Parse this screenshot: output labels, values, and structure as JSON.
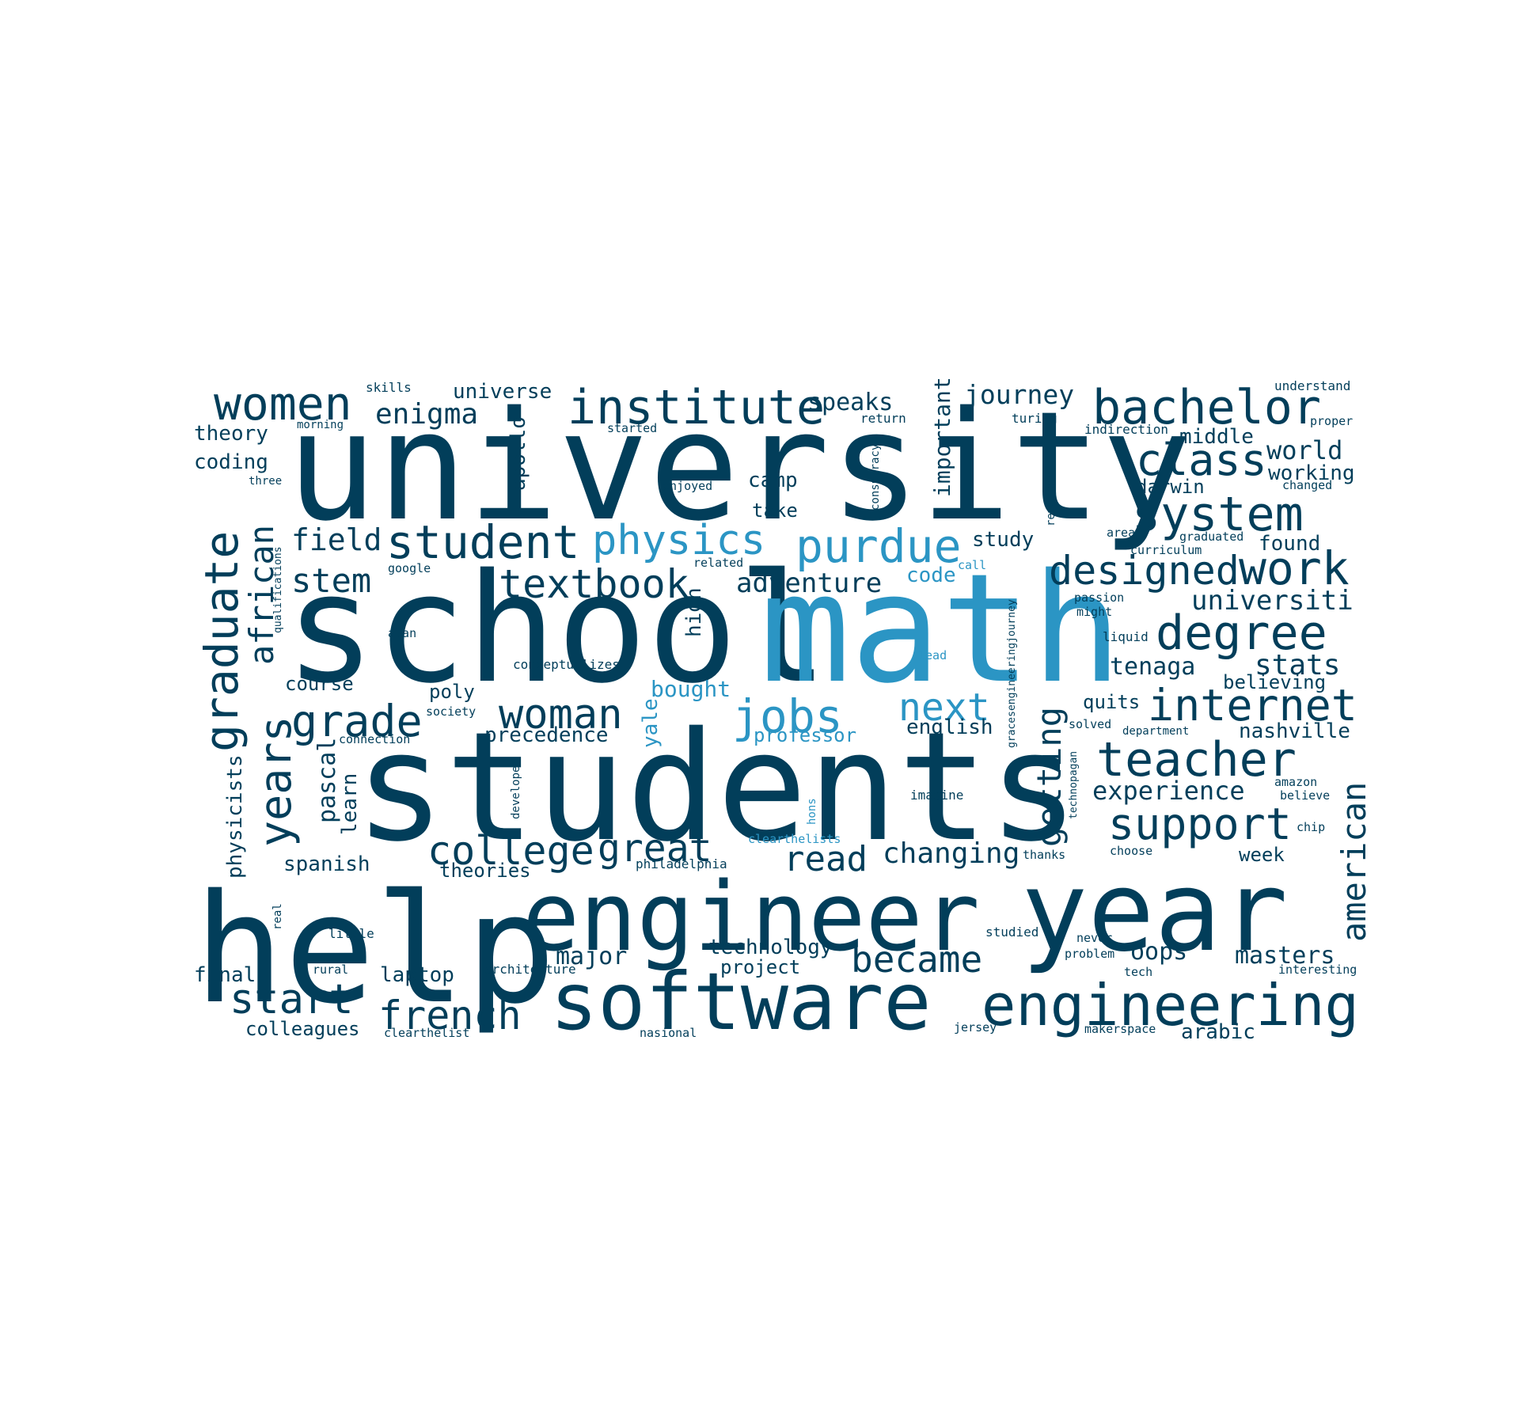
{
  "colors": {
    "dark": "#023e5a",
    "light": "#2b95c4",
    "background": "#ffffff"
  },
  "words": [
    {
      "text": "university",
      "color": "dark"
    },
    {
      "text": "school",
      "color": "dark"
    },
    {
      "text": "math",
      "color": "light"
    },
    {
      "text": "students",
      "color": "dark"
    },
    {
      "text": "help",
      "color": "dark"
    },
    {
      "text": "engineer",
      "color": "dark"
    },
    {
      "text": "year",
      "color": "dark"
    },
    {
      "text": "software",
      "color": "dark"
    },
    {
      "text": "engineering",
      "color": "dark"
    },
    {
      "text": "women",
      "color": "dark"
    },
    {
      "text": "institute",
      "color": "dark"
    },
    {
      "text": "bachelor",
      "color": "dark"
    },
    {
      "text": "class",
      "color": "dark"
    },
    {
      "text": "system",
      "color": "dark"
    },
    {
      "text": "student",
      "color": "dark"
    },
    {
      "text": "physics",
      "color": "light"
    },
    {
      "text": "purdue",
      "color": "light"
    },
    {
      "text": "designed",
      "color": "dark"
    },
    {
      "text": "work",
      "color": "dark"
    },
    {
      "text": "degree",
      "color": "dark"
    },
    {
      "text": "textbook",
      "color": "dark"
    },
    {
      "text": "graduate",
      "color": "dark"
    },
    {
      "text": "african",
      "color": "dark"
    },
    {
      "text": "years",
      "color": "dark"
    },
    {
      "text": "grade",
      "color": "dark"
    },
    {
      "text": "woman",
      "color": "dark"
    },
    {
      "text": "jobs",
      "color": "light"
    },
    {
      "text": "next",
      "color": "light"
    },
    {
      "text": "internet",
      "color": "dark"
    },
    {
      "text": "teacher",
      "color": "dark"
    },
    {
      "text": "getting",
      "color": "dark"
    },
    {
      "text": "american",
      "color": "dark"
    },
    {
      "text": "support",
      "color": "dark"
    },
    {
      "text": "college",
      "color": "dark"
    },
    {
      "text": "great",
      "color": "dark"
    },
    {
      "text": "read",
      "color": "dark"
    },
    {
      "text": "changing",
      "color": "dark"
    },
    {
      "text": "start",
      "color": "dark"
    },
    {
      "text": "french",
      "color": "dark"
    },
    {
      "text": "became",
      "color": "dark"
    },
    {
      "text": "stem",
      "color": "dark"
    },
    {
      "text": "field",
      "color": "dark"
    },
    {
      "text": "enigma",
      "color": "dark"
    },
    {
      "text": "journey",
      "color": "dark"
    },
    {
      "text": "universe",
      "color": "dark"
    },
    {
      "text": "speaks",
      "color": "dark"
    },
    {
      "text": "theory",
      "color": "dark"
    },
    {
      "text": "coding",
      "color": "dark"
    },
    {
      "text": "world",
      "color": "dark"
    },
    {
      "text": "working",
      "color": "dark"
    },
    {
      "text": "middle",
      "color": "dark"
    },
    {
      "text": "darwin",
      "color": "dark"
    },
    {
      "text": "found",
      "color": "dark"
    },
    {
      "text": "universiti",
      "color": "dark"
    },
    {
      "text": "tenaga",
      "color": "dark"
    },
    {
      "text": "stats",
      "color": "dark"
    },
    {
      "text": "believing",
      "color": "dark"
    },
    {
      "text": "quits",
      "color": "dark"
    },
    {
      "text": "nashville",
      "color": "dark"
    },
    {
      "text": "experience",
      "color": "dark"
    },
    {
      "text": "adventure",
      "color": "dark"
    },
    {
      "text": "code",
      "color": "light"
    },
    {
      "text": "camp",
      "color": "dark"
    },
    {
      "text": "take",
      "color": "dark"
    },
    {
      "text": "study",
      "color": "dark"
    },
    {
      "text": "apollo",
      "color": "dark"
    },
    {
      "text": "important",
      "color": "dark"
    },
    {
      "text": "high",
      "color": "dark"
    },
    {
      "text": "course",
      "color": "dark"
    },
    {
      "text": "poly",
      "color": "dark"
    },
    {
      "text": "bought",
      "color": "light"
    },
    {
      "text": "professor",
      "color": "light"
    },
    {
      "text": "english",
      "color": "dark"
    },
    {
      "text": "precedence",
      "color": "dark"
    },
    {
      "text": "yale",
      "color": "light"
    },
    {
      "text": "pascal",
      "color": "dark"
    },
    {
      "text": "learn",
      "color": "dark"
    },
    {
      "text": "physicists",
      "color": "dark"
    },
    {
      "text": "spanish",
      "color": "dark"
    },
    {
      "text": "theories",
      "color": "dark"
    },
    {
      "text": "week",
      "color": "dark"
    },
    {
      "text": "major",
      "color": "dark"
    },
    {
      "text": "technology",
      "color": "dark"
    },
    {
      "text": "project",
      "color": "dark"
    },
    {
      "text": "oops",
      "color": "dark"
    },
    {
      "text": "masters",
      "color": "dark"
    },
    {
      "text": "final",
      "color": "dark"
    },
    {
      "text": "laptop",
      "color": "dark"
    },
    {
      "text": "colleagues",
      "color": "dark"
    },
    {
      "text": "arabic",
      "color": "dark"
    },
    {
      "text": "skills",
      "color": "dark"
    },
    {
      "text": "morning",
      "color": "dark"
    },
    {
      "text": "three",
      "color": "dark"
    },
    {
      "text": "started",
      "color": "dark"
    },
    {
      "text": "enjoyed",
      "color": "dark"
    },
    {
      "text": "return",
      "color": "dark"
    },
    {
      "text": "conspiracy",
      "color": "dark"
    },
    {
      "text": "turing",
      "color": "dark"
    },
    {
      "text": "remember",
      "color": "dark"
    },
    {
      "text": "understand",
      "color": "dark"
    },
    {
      "text": "indirection",
      "color": "dark"
    },
    {
      "text": "proper",
      "color": "dark"
    },
    {
      "text": "changed",
      "color": "dark"
    },
    {
      "text": "area",
      "color": "dark"
    },
    {
      "text": "graduated",
      "color": "dark"
    },
    {
      "text": "curriculum",
      "color": "dark"
    },
    {
      "text": "call",
      "color": "light"
    },
    {
      "text": "related",
      "color": "dark"
    },
    {
      "text": "google",
      "color": "dark"
    },
    {
      "text": "qualifications",
      "color": "dark"
    },
    {
      "text": "passion",
      "color": "dark"
    },
    {
      "text": "might",
      "color": "dark"
    },
    {
      "text": "liquid",
      "color": "dark"
    },
    {
      "text": "alan",
      "color": "dark"
    },
    {
      "text": "lead",
      "color": "light"
    },
    {
      "text": "conceptualizes",
      "color": "dark"
    },
    {
      "text": "society",
      "color": "dark"
    },
    {
      "text": "connection",
      "color": "dark"
    },
    {
      "text": "gracesengineeringjourney",
      "color": "dark"
    },
    {
      "text": "solved",
      "color": "dark"
    },
    {
      "text": "department",
      "color": "dark"
    },
    {
      "text": "developer",
      "color": "dark"
    },
    {
      "text": "technopagan",
      "color": "dark"
    },
    {
      "text": "amazon",
      "color": "dark"
    },
    {
      "text": "believe",
      "color": "dark"
    },
    {
      "text": "imagine",
      "color": "dark"
    },
    {
      "text": "hons",
      "color": "light"
    },
    {
      "text": "chip",
      "color": "dark"
    },
    {
      "text": "clearthelists",
      "color": "light"
    },
    {
      "text": "thanks",
      "color": "dark"
    },
    {
      "text": "choose",
      "color": "dark"
    },
    {
      "text": "philadelphia",
      "color": "dark"
    },
    {
      "text": "real",
      "color": "dark"
    },
    {
      "text": "little",
      "color": "dark"
    },
    {
      "text": "studied",
      "color": "dark"
    },
    {
      "text": "never",
      "color": "dark"
    },
    {
      "text": "problem",
      "color": "dark"
    },
    {
      "text": "rural",
      "color": "dark"
    },
    {
      "text": "architecture",
      "color": "dark"
    },
    {
      "text": "tech",
      "color": "dark"
    },
    {
      "text": "interesting",
      "color": "dark"
    },
    {
      "text": "clearthelist",
      "color": "dark"
    },
    {
      "text": "nasional",
      "color": "dark"
    },
    {
      "text": "jersey",
      "color": "dark"
    },
    {
      "text": "makerspace",
      "color": "dark"
    }
  ]
}
